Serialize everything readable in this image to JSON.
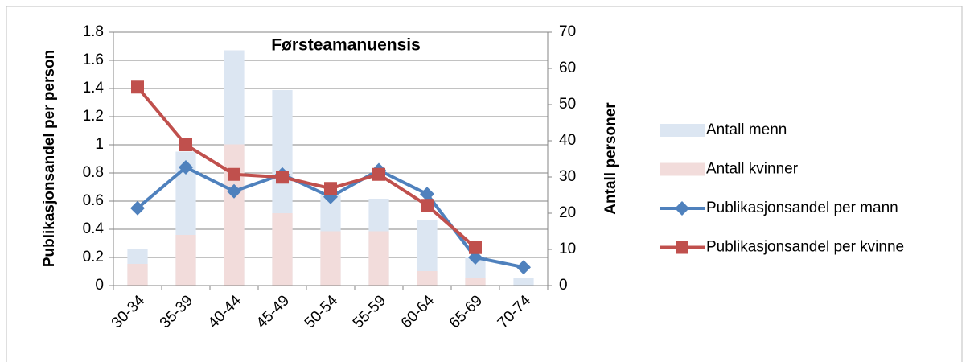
{
  "chart_data": {
    "type": "combo",
    "title": "Førsteamanuensis",
    "ylabel": "Publikasjonsandel per person",
    "y2label": "Antall personer",
    "categories": [
      "30-34",
      "35-39",
      "40-44",
      "45-49",
      "50-54",
      "55-59",
      "60-64",
      "65-69",
      "70-74"
    ],
    "series": [
      {
        "name": "Antall menn",
        "type": "bar",
        "axis": "y2",
        "color": "#dce6f2",
        "values": [
          10,
          37,
          65,
          54,
          25,
          24,
          18,
          8,
          2
        ]
      },
      {
        "name": "Antall kvinner",
        "type": "bar",
        "axis": "y2",
        "color": "#f2dcdb",
        "values": [
          6,
          14,
          39,
          20,
          15,
          15,
          4,
          2,
          0
        ]
      },
      {
        "name": "Publikasjonsandel per mann",
        "type": "line",
        "marker": "diamond",
        "color": "#4f81bd",
        "values": [
          0.55,
          0.84,
          0.67,
          0.79,
          0.63,
          0.82,
          0.65,
          0.2,
          0.13
        ]
      },
      {
        "name": "Publikasjonsandel per kvinne",
        "type": "line",
        "marker": "square",
        "color": "#c0504d",
        "values": [
          1.41,
          1.0,
          0.79,
          0.77,
          0.69,
          0.79,
          0.57,
          0.27,
          null
        ]
      }
    ],
    "ylim": [
      0,
      1.8
    ],
    "yticks": [
      0,
      0.2,
      0.4,
      0.6,
      0.8,
      1,
      1.2,
      1.4,
      1.6,
      1.8
    ],
    "y2lim": [
      0,
      70
    ],
    "y2ticks": [
      0,
      10,
      20,
      30,
      40,
      50,
      60,
      70
    ],
    "grid": true,
    "legend": "right"
  }
}
